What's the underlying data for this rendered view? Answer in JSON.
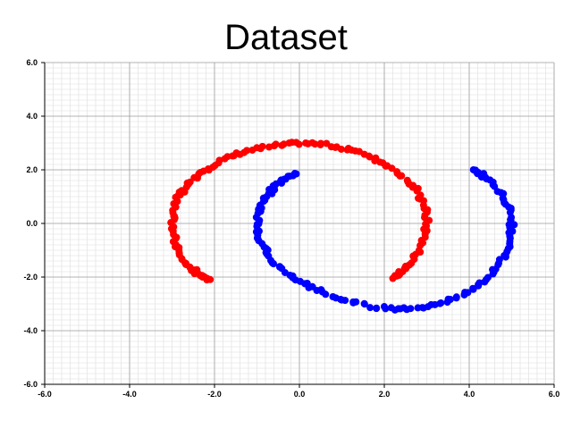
{
  "chart_data": {
    "type": "scatter",
    "title": "Dataset",
    "xlabel": "",
    "ylabel": "",
    "xlim": [
      -6.0,
      6.0
    ],
    "ylim": [
      -6.0,
      6.0
    ],
    "xticks": [
      "-6.0",
      "-4.0",
      "-2.0",
      "0.0",
      "2.0",
      "4.0",
      "6.0"
    ],
    "yticks": [
      "6.0",
      "4.0",
      "2.0",
      "0.0",
      "-2.0",
      "-4.0",
      "-6.0"
    ],
    "grid": true,
    "series": [
      {
        "color": "#ff0000",
        "shape": "upper moon arc, center (0,0), radius ~3, from angle 135 to ~-45 deg through left side",
        "points": [
          [
            -2.1,
            -2.1
          ],
          [
            -2.3,
            -1.95
          ],
          [
            -2.5,
            -1.75
          ],
          [
            -2.7,
            -1.45
          ],
          [
            -2.85,
            -1.0
          ],
          [
            -2.95,
            -0.5
          ],
          [
            -3.0,
            0.0
          ],
          [
            -2.95,
            0.5
          ],
          [
            -2.85,
            1.0
          ],
          [
            -2.65,
            1.4
          ],
          [
            -2.4,
            1.8
          ],
          [
            -2.05,
            2.15
          ],
          [
            -1.6,
            2.5
          ],
          [
            -1.1,
            2.75
          ],
          [
            -0.55,
            2.9
          ],
          [
            0.0,
            3.0
          ],
          [
            0.55,
            2.95
          ],
          [
            1.1,
            2.8
          ],
          [
            1.6,
            2.55
          ],
          [
            2.05,
            2.2
          ],
          [
            2.45,
            1.75
          ],
          [
            2.75,
            1.25
          ],
          [
            2.95,
            0.7
          ],
          [
            3.0,
            0.1
          ],
          [
            2.95,
            -0.5
          ],
          [
            2.8,
            -1.05
          ],
          [
            2.6,
            -1.5
          ],
          [
            2.4,
            -1.8
          ],
          [
            2.2,
            -2.05
          ]
        ]
      },
      {
        "color": "#0000ff",
        "shape": "lower moon arc, center (2,-0.25), radius ~3, from angle 135 to ~-45 deg through bottom",
        "points": [
          [
            -0.1,
            1.85
          ],
          [
            -0.35,
            1.65
          ],
          [
            -0.6,
            1.35
          ],
          [
            -0.8,
            0.95
          ],
          [
            -0.95,
            0.5
          ],
          [
            -1.0,
            0.0
          ],
          [
            -0.95,
            -0.5
          ],
          [
            -0.8,
            -1.0
          ],
          [
            -0.55,
            -1.5
          ],
          [
            -0.2,
            -1.95
          ],
          [
            0.25,
            -2.35
          ],
          [
            0.75,
            -2.7
          ],
          [
            1.3,
            -2.95
          ],
          [
            1.85,
            -3.15
          ],
          [
            2.4,
            -3.2
          ],
          [
            2.95,
            -3.1
          ],
          [
            3.45,
            -2.9
          ],
          [
            3.9,
            -2.6
          ],
          [
            4.3,
            -2.2
          ],
          [
            4.6,
            -1.75
          ],
          [
            4.85,
            -1.2
          ],
          [
            4.97,
            -0.65
          ],
          [
            5.0,
            -0.1
          ],
          [
            4.95,
            0.45
          ],
          [
            4.8,
            1.0
          ],
          [
            4.55,
            1.5
          ],
          [
            4.25,
            1.9
          ],
          [
            4.1,
            2.0
          ]
        ]
      }
    ]
  }
}
